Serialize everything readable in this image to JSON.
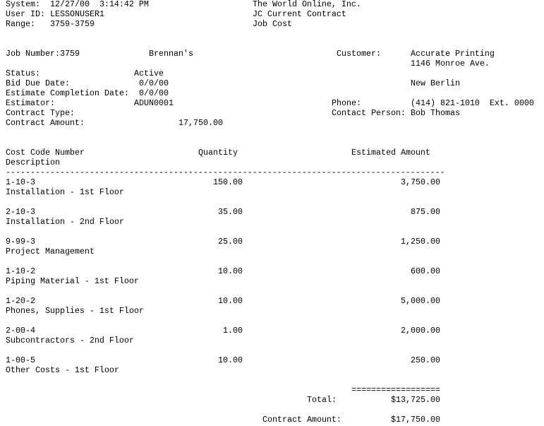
{
  "header": {
    "system_label": "System:",
    "system_value": "12/27/00  3:14:42 PM",
    "user_label": "User ID:",
    "user_value": "LESSONUSER1",
    "range_label": "Range:",
    "range_value": "3759-3759",
    "company": "The World Online, Inc.",
    "report_title": "JC Current Contract",
    "report_subtitle": "Job Cost"
  },
  "job": {
    "job_number_label": "Job Number:",
    "job_number": "3759",
    "job_name": "Brennan's",
    "status_label": "Status:",
    "status": "Active",
    "bid_due_label": "Bid Due Date:",
    "bid_due": "0/0/00",
    "est_completion_label": "Estimate Completion Date:",
    "est_completion": "0/0/00",
    "estimator_label": "Estimator:",
    "estimator": "ADUN0001",
    "contract_type_label": "Contract Type:",
    "contract_type": "",
    "contract_amount_label": "Contract Amount:",
    "contract_amount": "17,750.00"
  },
  "customer": {
    "label": "Customer:",
    "name": "Accurate Printing",
    "address": "1146 Monroe Ave.",
    "city": "New Berlin",
    "phone_label": "Phone:",
    "phone": "(414) 821-1010  Ext. 0000",
    "contact_label": "Contact Person:",
    "contact": "Bob Thomas"
  },
  "table": {
    "col_code": "Cost Code Number",
    "col_description": "Description",
    "col_quantity": "Quantity",
    "col_amount": "Estimated Amount",
    "separator": "-----------------------------------------------------------------------------------------",
    "items": [
      {
        "code": "1-10-3",
        "description": "Installation - 1st Floor",
        "quantity": "150.00",
        "amount": "3,750.00"
      },
      {
        "code": "2-10-3",
        "description": "Installation - 2nd Floor",
        "quantity": "35.00",
        "amount": "875.00"
      },
      {
        "code": "9-99-3",
        "description": "Project Management",
        "quantity": "25.00",
        "amount": "1,250.00"
      },
      {
        "code": "1-10-2",
        "description": "Piping Material - 1st Floor",
        "quantity": "10.00",
        "amount": "600.00"
      },
      {
        "code": "1-20-2",
        "description": "Phones, Supplies - 1st Floor",
        "quantity": "10.00",
        "amount": "5,000.00"
      },
      {
        "code": "2-00-4",
        "description": "Subcontractors - 2nd Floor",
        "quantity": "1.00",
        "amount": "2,000.00"
      },
      {
        "code": "1-00-5",
        "description": "Other Costs - 1st Floor",
        "quantity": "10.00",
        "amount": "250.00"
      }
    ]
  },
  "totals": {
    "rule": "==================",
    "total_label": "Total:",
    "total": "$13,725.00",
    "contract_label": "Contract Amount:",
    "contract": "$17,750.00"
  }
}
